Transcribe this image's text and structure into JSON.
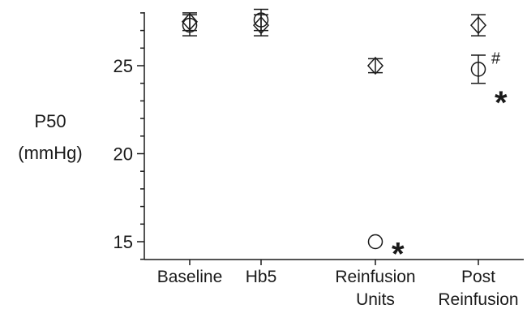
{
  "chart_data": {
    "type": "scatter",
    "ylabel": [
      "P50",
      "(mmHg)"
    ],
    "ylim": [
      14,
      28
    ],
    "yticks": [
      15,
      20,
      25
    ],
    "ytick_labels": [
      "15",
      "20",
      "25"
    ],
    "categories": [
      [
        "Baseline"
      ],
      [
        "Hb5"
      ],
      [
        "Reinfusion",
        "Units"
      ],
      [
        "Post",
        "Reinfusion"
      ]
    ],
    "series": [
      {
        "marker": "diamond",
        "values": [
          27.5,
          27.3,
          25.0,
          27.3
        ],
        "err": [
          0.5,
          0.6,
          0.4,
          0.6
        ]
      },
      {
        "marker": "circle",
        "values": [
          27.3,
          27.6,
          15.0,
          24.8
        ],
        "err": [
          0.6,
          0.6,
          0,
          0.8
        ]
      }
    ],
    "annotations": [
      {
        "text": "#",
        "category": 3,
        "y": 25.4
      },
      {
        "text": "*",
        "category": 3,
        "y": 23.2
      },
      {
        "text": "*",
        "category": 2,
        "y": 14.6
      }
    ]
  }
}
